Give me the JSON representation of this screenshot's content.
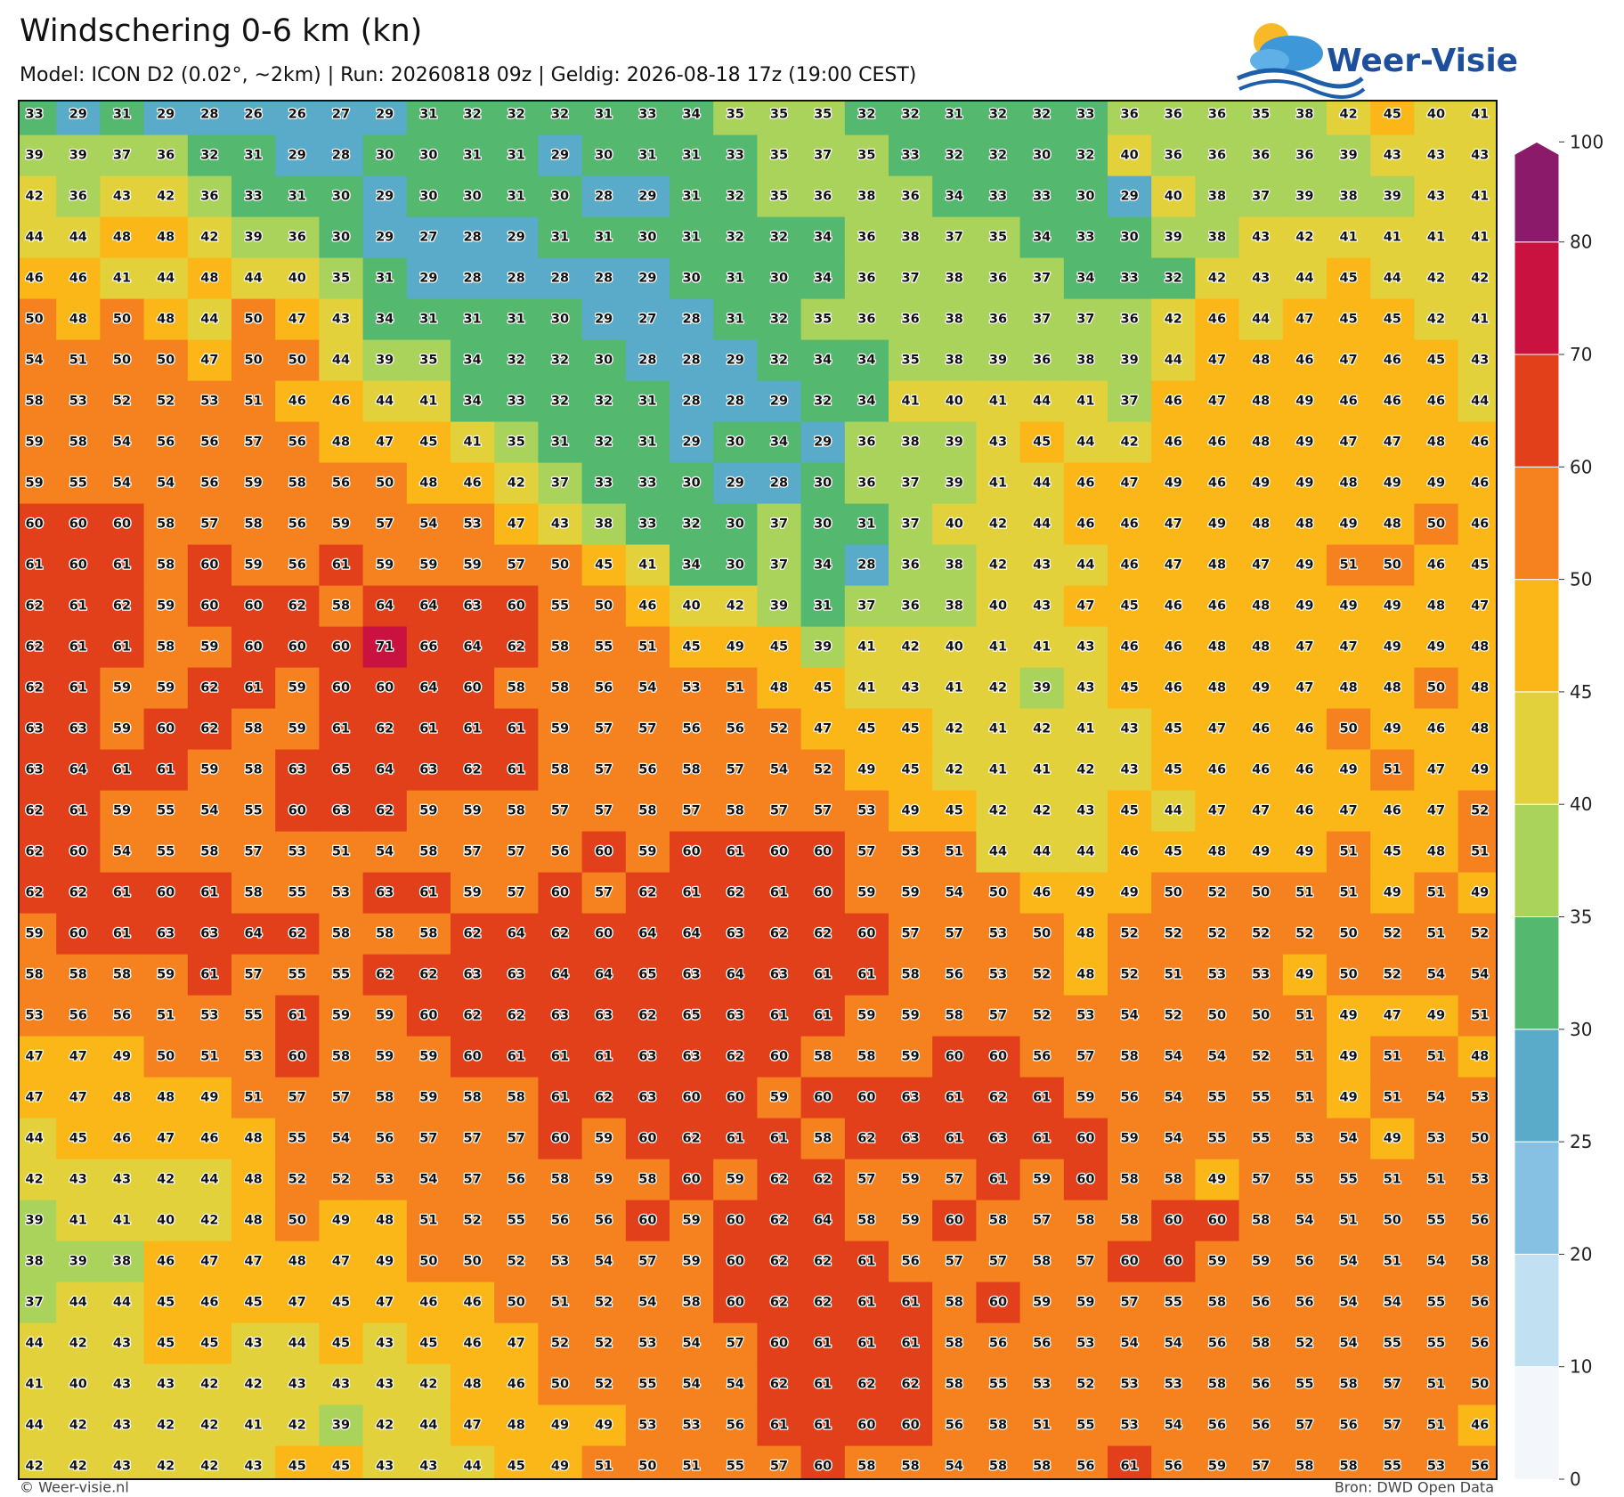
{
  "chart_data": {
    "type": "heatmap",
    "title": "Windschering 0-6 km (kn)",
    "subtitle": "Model: ICON D2 (0.02°, ~2km)  |  Run: 20260818 09z  |  Geldig: 2026-08-18 17z (19:00 CEST)",
    "colorbar": {
      "levels": [
        0,
        10,
        20,
        25,
        30,
        35,
        40,
        45,
        50,
        60,
        70,
        80,
        100
      ],
      "colors": [
        "#f3f6fa",
        "#c1e0f1",
        "#86c1e4",
        "#5aaac9",
        "#55b86f",
        "#a9d35a",
        "#e3d13c",
        "#fbb617",
        "#f5821f",
        "#e23f1b",
        "#c9123f",
        "#8b1a6a"
      ],
      "extend_max": true
    },
    "values": [
      [
        33,
        29,
        31,
        29,
        28,
        26,
        26,
        27,
        29,
        31,
        32,
        32,
        32,
        31,
        33,
        34,
        35,
        35,
        35,
        32,
        32,
        31,
        32,
        32,
        33,
        36,
        36,
        36,
        35,
        38,
        42,
        45,
        40,
        41
      ],
      [
        39,
        39,
        37,
        36,
        32,
        31,
        29,
        28,
        30,
        30,
        31,
        31,
        29,
        30,
        31,
        31,
        33,
        35,
        37,
        35,
        33,
        32,
        32,
        30,
        32,
        40,
        36,
        36,
        36,
        36,
        39,
        43,
        43,
        43
      ],
      [
        42,
        36,
        43,
        42,
        36,
        33,
        31,
        30,
        29,
        30,
        30,
        31,
        30,
        28,
        29,
        31,
        32,
        35,
        36,
        38,
        36,
        34,
        33,
        33,
        30,
        29,
        40,
        38,
        37,
        39,
        38,
        39,
        43,
        41
      ],
      [
        44,
        44,
        48,
        48,
        42,
        39,
        36,
        30,
        29,
        27,
        28,
        29,
        31,
        31,
        30,
        31,
        32,
        32,
        34,
        36,
        38,
        37,
        35,
        34,
        33,
        30,
        39,
        38,
        43,
        42,
        41,
        41,
        41,
        41
      ],
      [
        46,
        46,
        41,
        44,
        48,
        44,
        40,
        35,
        31,
        29,
        28,
        28,
        28,
        28,
        29,
        30,
        31,
        30,
        34,
        36,
        37,
        38,
        36,
        37,
        34,
        33,
        32,
        42,
        43,
        44,
        45,
        44,
        42,
        42
      ],
      [
        50,
        48,
        50,
        48,
        44,
        50,
        47,
        43,
        34,
        31,
        31,
        31,
        30,
        29,
        27,
        28,
        31,
        32,
        35,
        36,
        36,
        38,
        36,
        37,
        37,
        36,
        42,
        46,
        44,
        47,
        45,
        45,
        42,
        41
      ],
      [
        54,
        51,
        50,
        50,
        47,
        50,
        50,
        44,
        39,
        35,
        34,
        32,
        32,
        30,
        28,
        28,
        29,
        32,
        34,
        34,
        35,
        38,
        39,
        36,
        38,
        39,
        44,
        47,
        48,
        46,
        47,
        46,
        45,
        43
      ],
      [
        58,
        53,
        52,
        52,
        53,
        51,
        46,
        46,
        44,
        41,
        34,
        33,
        32,
        32,
        31,
        28,
        28,
        29,
        32,
        34,
        41,
        40,
        41,
        44,
        41,
        37,
        46,
        47,
        48,
        49,
        46,
        46,
        46,
        44
      ],
      [
        59,
        58,
        54,
        56,
        56,
        57,
        56,
        48,
        47,
        45,
        41,
        35,
        31,
        32,
        31,
        29,
        30,
        34,
        29,
        36,
        38,
        39,
        43,
        45,
        44,
        42,
        46,
        46,
        48,
        49,
        47,
        47,
        48,
        46
      ],
      [
        59,
        55,
        54,
        54,
        56,
        59,
        58,
        56,
        50,
        48,
        46,
        42,
        37,
        33,
        33,
        30,
        29,
        28,
        30,
        36,
        37,
        39,
        41,
        44,
        46,
        47,
        49,
        46,
        49,
        49,
        48,
        49,
        49,
        46
      ],
      [
        60,
        60,
        60,
        58,
        57,
        58,
        56,
        59,
        57,
        54,
        53,
        47,
        43,
        38,
        33,
        32,
        30,
        37,
        30,
        31,
        37,
        40,
        42,
        44,
        46,
        46,
        47,
        49,
        48,
        48,
        49,
        48,
        50,
        46
      ],
      [
        61,
        60,
        61,
        58,
        60,
        59,
        56,
        61,
        59,
        59,
        59,
        57,
        50,
        45,
        41,
        34,
        30,
        37,
        34,
        28,
        36,
        38,
        42,
        43,
        44,
        46,
        47,
        48,
        47,
        49,
        51,
        50,
        46,
        45
      ],
      [
        62,
        61,
        62,
        59,
        60,
        60,
        62,
        58,
        64,
        64,
        63,
        60,
        55,
        50,
        46,
        40,
        42,
        39,
        31,
        37,
        36,
        38,
        40,
        43,
        47,
        45,
        46,
        46,
        48,
        49,
        49,
        49,
        48,
        47
      ],
      [
        62,
        61,
        61,
        58,
        59,
        60,
        60,
        60,
        71,
        66,
        64,
        62,
        58,
        55,
        51,
        45,
        49,
        45,
        39,
        41,
        42,
        40,
        41,
        41,
        43,
        46,
        46,
        48,
        48,
        47,
        47,
        49,
        49,
        48
      ],
      [
        62,
        61,
        59,
        59,
        62,
        61,
        59,
        60,
        60,
        64,
        60,
        58,
        58,
        56,
        54,
        53,
        51,
        48,
        45,
        41,
        43,
        41,
        42,
        39,
        43,
        45,
        46,
        48,
        49,
        47,
        48,
        48,
        50,
        48
      ],
      [
        63,
        63,
        59,
        60,
        62,
        58,
        59,
        61,
        62,
        61,
        61,
        61,
        59,
        57,
        57,
        56,
        56,
        52,
        47,
        45,
        45,
        42,
        41,
        42,
        41,
        43,
        45,
        47,
        46,
        46,
        50,
        49,
        46,
        48
      ],
      [
        63,
        64,
        61,
        61,
        59,
        58,
        63,
        65,
        64,
        63,
        62,
        61,
        58,
        57,
        56,
        58,
        57,
        54,
        52,
        49,
        45,
        42,
        41,
        41,
        42,
        43,
        45,
        46,
        46,
        46,
        49,
        51,
        47,
        49
      ],
      [
        62,
        61,
        59,
        55,
        54,
        55,
        60,
        63,
        62,
        59,
        59,
        58,
        57,
        57,
        58,
        57,
        58,
        57,
        57,
        53,
        49,
        45,
        42,
        42,
        43,
        45,
        44,
        47,
        47,
        46,
        47,
        46,
        47,
        52
      ],
      [
        62,
        60,
        54,
        55,
        58,
        57,
        53,
        51,
        54,
        58,
        57,
        57,
        56,
        60,
        59,
        60,
        61,
        60,
        60,
        57,
        53,
        51,
        44,
        44,
        44,
        46,
        45,
        48,
        49,
        49,
        51,
        45,
        48,
        51
      ],
      [
        62,
        62,
        61,
        60,
        61,
        58,
        55,
        53,
        63,
        61,
        59,
        57,
        60,
        57,
        62,
        61,
        62,
        61,
        60,
        59,
        59,
        54,
        50,
        46,
        49,
        49,
        50,
        52,
        50,
        51,
        51,
        49,
        51,
        49
      ],
      [
        59,
        60,
        61,
        63,
        63,
        64,
        62,
        58,
        58,
        58,
        62,
        64,
        62,
        60,
        64,
        64,
        63,
        62,
        62,
        60,
        57,
        57,
        53,
        50,
        48,
        52,
        52,
        52,
        52,
        52,
        50,
        52,
        51,
        52
      ],
      [
        58,
        58,
        58,
        59,
        61,
        57,
        55,
        55,
        62,
        62,
        63,
        63,
        64,
        64,
        65,
        63,
        64,
        63,
        61,
        61,
        58,
        56,
        53,
        52,
        48,
        52,
        51,
        53,
        53,
        49,
        50,
        52,
        54,
        54
      ],
      [
        53,
        56,
        56,
        51,
        53,
        55,
        61,
        59,
        59,
        60,
        62,
        62,
        63,
        63,
        62,
        65,
        63,
        61,
        61,
        59,
        59,
        58,
        57,
        52,
        53,
        54,
        52,
        50,
        50,
        51,
        49,
        47,
        49,
        51
      ],
      [
        47,
        47,
        49,
        50,
        51,
        53,
        60,
        58,
        59,
        59,
        60,
        61,
        61,
        61,
        63,
        63,
        62,
        60,
        58,
        58,
        59,
        60,
        60,
        56,
        57,
        58,
        54,
        54,
        52,
        51,
        49,
        51,
        51,
        48
      ],
      [
        47,
        47,
        48,
        48,
        49,
        51,
        57,
        57,
        58,
        59,
        58,
        58,
        61,
        62,
        63,
        60,
        60,
        59,
        60,
        60,
        63,
        61,
        62,
        61,
        59,
        56,
        54,
        55,
        55,
        51,
        49,
        51,
        54,
        53
      ],
      [
        44,
        45,
        46,
        47,
        46,
        48,
        55,
        54,
        56,
        57,
        57,
        57,
        60,
        59,
        60,
        62,
        61,
        61,
        58,
        62,
        63,
        61,
        63,
        61,
        60,
        59,
        54,
        55,
        55,
        53,
        54,
        49,
        53,
        50
      ],
      [
        42,
        43,
        43,
        42,
        44,
        48,
        52,
        52,
        53,
        54,
        57,
        56,
        58,
        59,
        58,
        60,
        59,
        62,
        62,
        57,
        59,
        57,
        61,
        59,
        60,
        58,
        58,
        49,
        57,
        55,
        55,
        51,
        51,
        53
      ],
      [
        39,
        41,
        41,
        40,
        42,
        48,
        50,
        49,
        48,
        51,
        52,
        55,
        56,
        56,
        60,
        59,
        60,
        62,
        64,
        58,
        59,
        60,
        58,
        57,
        58,
        58,
        60,
        60,
        58,
        54,
        51,
        50,
        55,
        56
      ],
      [
        38,
        39,
        38,
        46,
        47,
        47,
        48,
        47,
        49,
        50,
        50,
        52,
        53,
        54,
        57,
        59,
        60,
        62,
        62,
        61,
        56,
        57,
        57,
        58,
        57,
        60,
        60,
        59,
        59,
        56,
        54,
        51,
        54,
        58
      ],
      [
        37,
        44,
        44,
        45,
        46,
        45,
        47,
        45,
        47,
        46,
        46,
        50,
        51,
        52,
        54,
        58,
        60,
        62,
        62,
        61,
        61,
        58,
        60,
        59,
        59,
        57,
        55,
        58,
        56,
        56,
        54,
        54,
        55,
        56
      ],
      [
        44,
        42,
        43,
        45,
        45,
        43,
        44,
        45,
        43,
        45,
        46,
        47,
        52,
        52,
        53,
        54,
        57,
        60,
        61,
        61,
        61,
        58,
        56,
        56,
        53,
        54,
        54,
        56,
        58,
        52,
        54,
        55,
        55,
        56
      ],
      [
        41,
        40,
        43,
        43,
        42,
        42,
        43,
        43,
        43,
        42,
        48,
        46,
        50,
        52,
        55,
        54,
        54,
        62,
        61,
        62,
        62,
        58,
        55,
        53,
        52,
        53,
        53,
        58,
        56,
        55,
        58,
        57,
        51,
        50
      ],
      [
        44,
        42,
        43,
        42,
        42,
        41,
        42,
        39,
        42,
        44,
        47,
        48,
        49,
        49,
        53,
        53,
        56,
        61,
        61,
        60,
        60,
        56,
        58,
        51,
        55,
        53,
        54,
        56,
        56,
        57,
        56,
        57,
        51,
        46
      ],
      [
        42,
        42,
        43,
        42,
        42,
        43,
        45,
        45,
        43,
        43,
        44,
        45,
        49,
        51,
        50,
        51,
        55,
        57,
        60,
        58,
        58,
        54,
        58,
        58,
        56,
        61,
        56,
        59,
        57,
        58,
        58,
        55,
        53,
        56
      ]
    ]
  },
  "logo": "Weer-Visie",
  "footer": {
    "left": "© Weer-visie.nl",
    "right": "Bron: DWD Open Data"
  }
}
